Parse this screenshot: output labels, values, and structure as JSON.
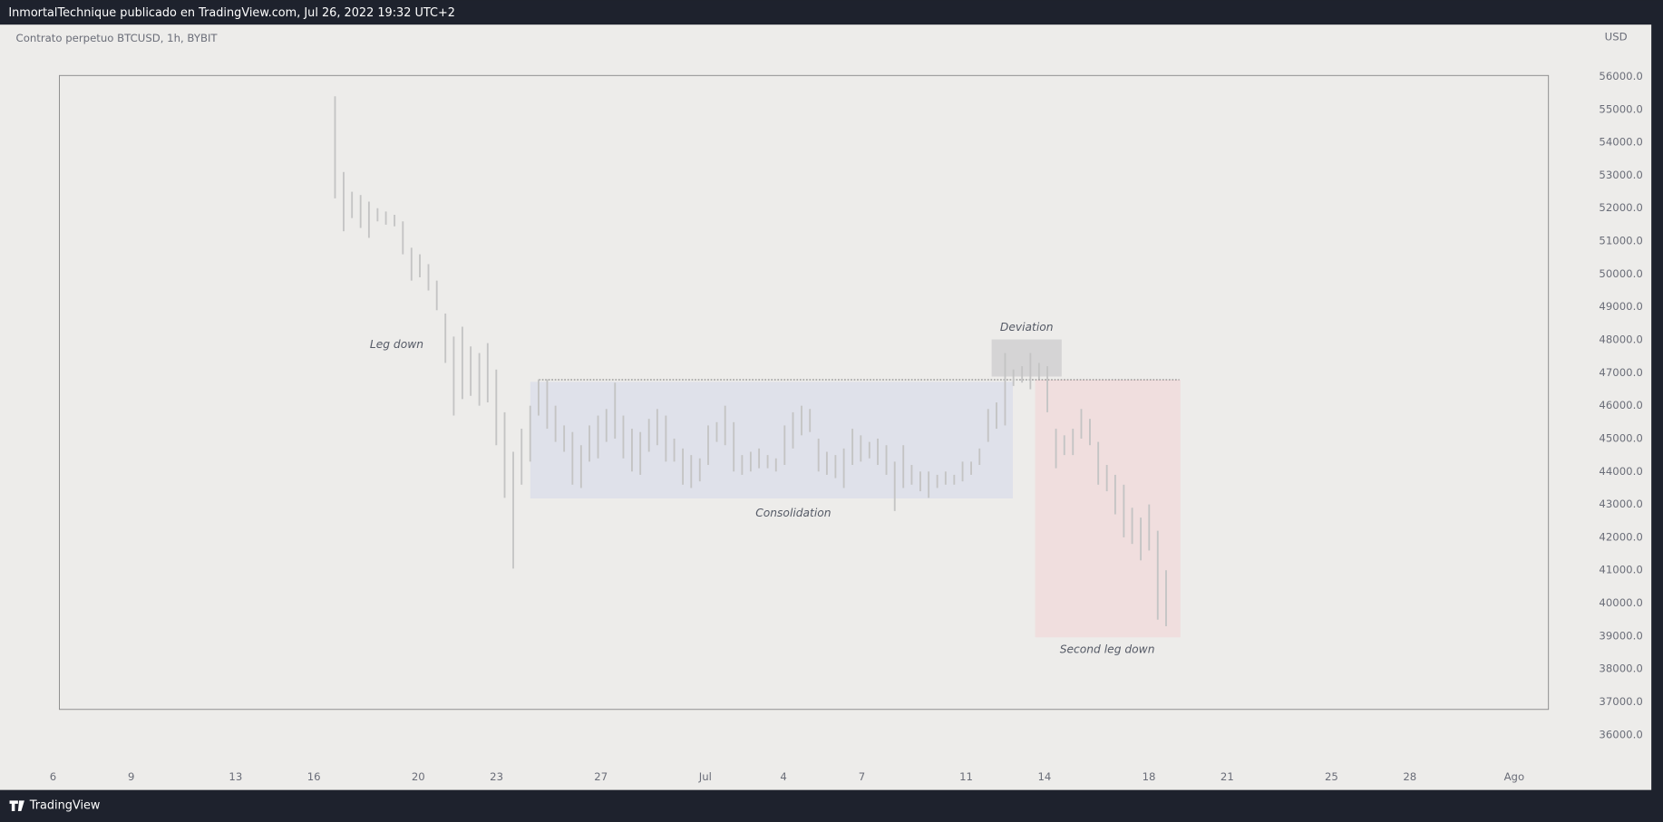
{
  "header": {
    "title": "InmortalTechnique publicado en TradingView.com, Jul 26, 2022 19:32 UTC+2"
  },
  "chart_data": {
    "type": "ohlc",
    "title": "Contrato perpetuo BTCUSD, 1h, BYBIT",
    "y_label": "USD",
    "color": "#c4c4c4",
    "grid": false,
    "annotations": [
      "Leg down",
      "Consolidation",
      "Deviation",
      "Second leg down"
    ],
    "x": [
      16.81,
      17.14,
      17.46,
      17.79,
      18.11,
      18.44,
      18.76,
      19.09,
      19.41,
      19.74,
      20.06,
      20.39,
      20.71,
      21.04,
      21.36,
      21.69,
      22.01,
      22.34,
      22.66,
      22.99,
      23.31,
      23.64,
      23.96,
      24.29,
      24.61,
      24.94,
      25.26,
      25.59,
      25.91,
      26.24,
      26.56,
      26.89,
      27.21,
      27.54,
      27.86,
      28.19,
      28.51,
      28.84,
      29.16,
      29.49,
      29.81,
      30.14,
      30.46,
      30.79,
      31.11,
      31.44,
      31.76,
      32.09,
      32.41,
      32.74,
      33.06,
      33.39,
      33.71,
      34.04,
      34.36,
      34.69,
      35.01,
      35.34,
      35.66,
      35.99,
      36.31,
      36.64,
      36.96,
      37.29,
      37.61,
      37.94,
      38.26,
      38.59,
      38.91,
      39.24,
      39.56,
      39.89,
      40.21,
      40.54,
      40.86,
      41.19,
      41.51,
      41.84,
      42.16,
      42.49,
      42.81,
      43.14,
      43.46,
      43.79,
      44.11,
      44.44,
      44.76,
      45.09,
      45.41,
      45.74,
      46.06,
      46.39,
      46.71,
      47.04,
      47.36,
      47.69,
      48.01,
      48.34,
      48.66
    ],
    "high": [
      55400,
      53100,
      52500,
      52400,
      52200,
      52000,
      51900,
      51800,
      51600,
      50800,
      50600,
      50300,
      49800,
      48800,
      48100,
      48400,
      47800,
      47600,
      47900,
      47100,
      45800,
      44600,
      45300,
      46000,
      46800,
      46800,
      46000,
      45400,
      45200,
      44800,
      45400,
      45700,
      45900,
      46700,
      45700,
      45300,
      45200,
      45600,
      45900,
      45700,
      45000,
      44700,
      44500,
      44400,
      45400,
      45500,
      46000,
      45500,
      44500,
      44600,
      44700,
      44500,
      44400,
      45400,
      45800,
      46000,
      45900,
      45000,
      44600,
      44500,
      44700,
      45300,
      45100,
      44900,
      45000,
      44800,
      44300,
      44800,
      44200,
      44000,
      44000,
      43900,
      44000,
      43900,
      44300,
      44300,
      44700,
      45900,
      46100,
      47600,
      47100,
      47200,
      47600,
      47300,
      47200,
      45300,
      45100,
      45300,
      45900,
      45600,
      44900,
      44200,
      43900,
      43600,
      42900,
      42600,
      43000,
      42200,
      41000
    ],
    "low": [
      52300,
      51300,
      51700,
      51400,
      51100,
      51600,
      51500,
      51450,
      50600,
      49800,
      49900,
      49500,
      48900,
      47300,
      45700,
      46200,
      46300,
      46000,
      46100,
      44800,
      43200,
      41050,
      43600,
      44300,
      45700,
      45300,
      44900,
      44600,
      43600,
      43500,
      44300,
      44400,
      44900,
      45000,
      44400,
      44000,
      43900,
      44600,
      44800,
      44300,
      44300,
      43600,
      43500,
      43700,
      44200,
      44900,
      44800,
      44000,
      43900,
      44000,
      44100,
      44100,
      44000,
      44200,
      44700,
      45100,
      45200,
      44000,
      43900,
      43800,
      43500,
      44200,
      44300,
      44400,
      44200,
      43900,
      42800,
      43500,
      43600,
      43400,
      43200,
      43500,
      43600,
      43600,
      43700,
      43900,
      44200,
      44900,
      45300,
      45400,
      46600,
      46700,
      46500,
      46800,
      45800,
      44100,
      44500,
      44500,
      45000,
      44800,
      43600,
      43400,
      42700,
      42000,
      41800,
      41300,
      41600,
      39500,
      39300
    ],
    "xlim": [
      3.97,
      64.94
    ],
    "xticks": [
      6,
      9,
      13,
      16,
      20,
      23,
      27,
      {
        "value": 31,
        "label": "Jul"
      },
      {
        "value": 34,
        "label": "4"
      },
      {
        "value": 37,
        "label": "7"
      },
      {
        "value": 41,
        "label": "11"
      },
      {
        "value": 44,
        "label": "14"
      },
      {
        "value": 48,
        "label": "18"
      },
      {
        "value": 51,
        "label": "21"
      },
      {
        "value": 55,
        "label": "25"
      },
      {
        "value": 58,
        "label": "28"
      },
      {
        "value": 62,
        "label": "Ago"
      }
    ],
    "ylim": [
      34325,
      57578
    ],
    "yticks": [
      {
        "value": 36000,
        "label": "36000.0"
      },
      {
        "value": 37000,
        "label": "37000.0"
      },
      {
        "value": 38000,
        "label": "38000.0"
      },
      {
        "value": 39000,
        "label": "39000.0"
      },
      {
        "value": 40000,
        "label": "40000.0"
      },
      {
        "value": 41000,
        "label": "41000.0"
      },
      {
        "value": 42000,
        "label": "42000.0"
      },
      {
        "value": 43000,
        "label": "43000.0"
      },
      {
        "value": 44000,
        "label": "44000.0"
      },
      {
        "value": 45000,
        "label": "45000.0"
      },
      {
        "value": 46000,
        "label": "46000.0"
      },
      {
        "value": 47000,
        "label": "47000.0"
      },
      {
        "value": 48000,
        "label": "48000.0"
      },
      {
        "value": 49000,
        "label": "49000.0"
      },
      {
        "value": 50000,
        "label": "50000.0"
      },
      {
        "value": 51000,
        "label": "51000.0"
      },
      {
        "value": 52000,
        "label": "52000.0"
      },
      {
        "value": 53000,
        "label": "53000.0"
      },
      {
        "value": 54000,
        "label": "54000.0"
      },
      {
        "value": 55000,
        "label": "55000.0"
      },
      {
        "value": 56000,
        "label": "56000.0"
      }
    ]
  },
  "footer": {
    "brand": "TradingView"
  }
}
